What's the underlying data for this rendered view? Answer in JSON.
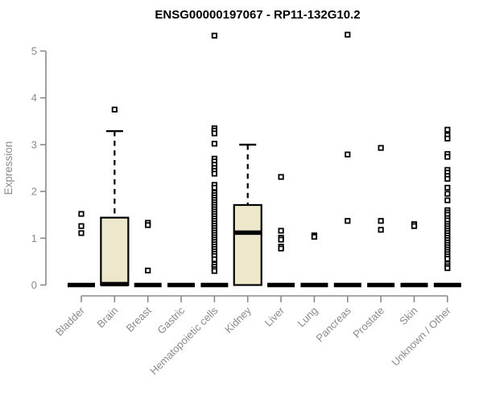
{
  "chart_data": {
    "type": "boxplot",
    "title": "ENSG00000197067 - RP11-132G10.2",
    "ylabel": "Expression",
    "xlabel": "",
    "ylim": [
      0,
      5
    ],
    "yticks": [
      0,
      1,
      2,
      3,
      4,
      5
    ],
    "grid": false,
    "legend": "none",
    "colors": {
      "box_fill": "#EDE8CC",
      "box_stroke": "#000000",
      "outlier_stroke": "#000000",
      "outlier_fill": "#FFFFFF",
      "axis": "#8A8A8A",
      "title": "#000000",
      "background": "#FFFFFF"
    },
    "categories": [
      "Bladder",
      "Brain",
      "Breast",
      "Gastric",
      "Hematopoietic cells",
      "Kidney",
      "Liver",
      "Lung",
      "Pancreas",
      "Prostate",
      "Skin",
      "Unknown / Other"
    ],
    "series": [
      {
        "category": "Bladder",
        "q1": 0,
        "median": 0,
        "q3": 0,
        "whisker_low": 0,
        "whisker_high": 0,
        "outliers": [
          1.52,
          1.26,
          1.11
        ]
      },
      {
        "category": "Brain",
        "q1": 0,
        "median": 0.02,
        "q3": 1.44,
        "whisker_low": 0,
        "whisker_high": 3.29,
        "outliers": [
          3.75
        ]
      },
      {
        "category": "Breast",
        "q1": 0,
        "median": 0,
        "q3": 0,
        "whisker_low": 0,
        "whisker_high": 0,
        "outliers": [
          1.33,
          1.28,
          0.31
        ]
      },
      {
        "category": "Gastric",
        "q1": 0,
        "median": 0,
        "q3": 0,
        "whisker_low": 0,
        "whisker_high": 0,
        "outliers": []
      },
      {
        "category": "Hematopoietic cells",
        "q1": 0,
        "median": 0,
        "q3": 0,
        "whisker_low": 0,
        "whisker_high": 0,
        "outliers": [
          5.33,
          3.35,
          3.3,
          3.24,
          3.02,
          2.7,
          2.64,
          2.57,
          2.5,
          2.44,
          2.38,
          2.14,
          2.08,
          1.97,
          1.92,
          1.87,
          1.82,
          1.77,
          1.72,
          1.67,
          1.62,
          1.57,
          1.52,
          1.47,
          1.42,
          1.37,
          1.32,
          1.27,
          1.22,
          1.17,
          1.12,
          1.07,
          1.02,
          0.97,
          0.92,
          0.87,
          0.82,
          0.77,
          0.72,
          0.67,
          0.62,
          0.55,
          0.44,
          0.39,
          0.34,
          0.3
        ]
      },
      {
        "category": "Kidney",
        "q1": 0,
        "median": 1.12,
        "q3": 1.71,
        "whisker_low": 0,
        "whisker_high": 3.0,
        "outliers": []
      },
      {
        "category": "Liver",
        "q1": 0,
        "median": 0,
        "q3": 0,
        "whisker_low": 0,
        "whisker_high": 0,
        "outliers": [
          2.31,
          1.16,
          1.01,
          0.97,
          0.82,
          0.78
        ]
      },
      {
        "category": "Lung",
        "q1": 0,
        "median": 0,
        "q3": 0,
        "whisker_low": 0,
        "whisker_high": 0,
        "outliers": [
          1.06,
          1.03
        ]
      },
      {
        "category": "Pancreas",
        "q1": 0,
        "median": 0,
        "q3": 0,
        "whisker_low": 0,
        "whisker_high": 0,
        "outliers": [
          5.35,
          2.79,
          1.37
        ]
      },
      {
        "category": "Prostate",
        "q1": 0,
        "median": 0,
        "q3": 0,
        "whisker_low": 0,
        "whisker_high": 0,
        "outliers": [
          2.93,
          1.37,
          1.18
        ]
      },
      {
        "category": "Skin",
        "q1": 0,
        "median": 0,
        "q3": 0,
        "whisker_low": 0,
        "whisker_high": 0,
        "outliers": [
          1.3,
          1.26
        ]
      },
      {
        "category": "Unknown / Other",
        "q1": 0,
        "median": 0,
        "q3": 0,
        "whisker_low": 0,
        "whisker_high": 0,
        "outliers": [
          3.32,
          3.2,
          3.13,
          2.8,
          2.74,
          2.46,
          2.4,
          2.33,
          2.27,
          2.08,
          1.95,
          1.81,
          1.6,
          1.55,
          1.5,
          1.43,
          1.38,
          1.31,
          1.26,
          1.21,
          1.16,
          1.11,
          1.06,
          1.01,
          0.96,
          0.91,
          0.86,
          0.81,
          0.76,
          0.71,
          0.66,
          0.61,
          0.56,
          0.45,
          0.4,
          0.36
        ]
      }
    ]
  }
}
